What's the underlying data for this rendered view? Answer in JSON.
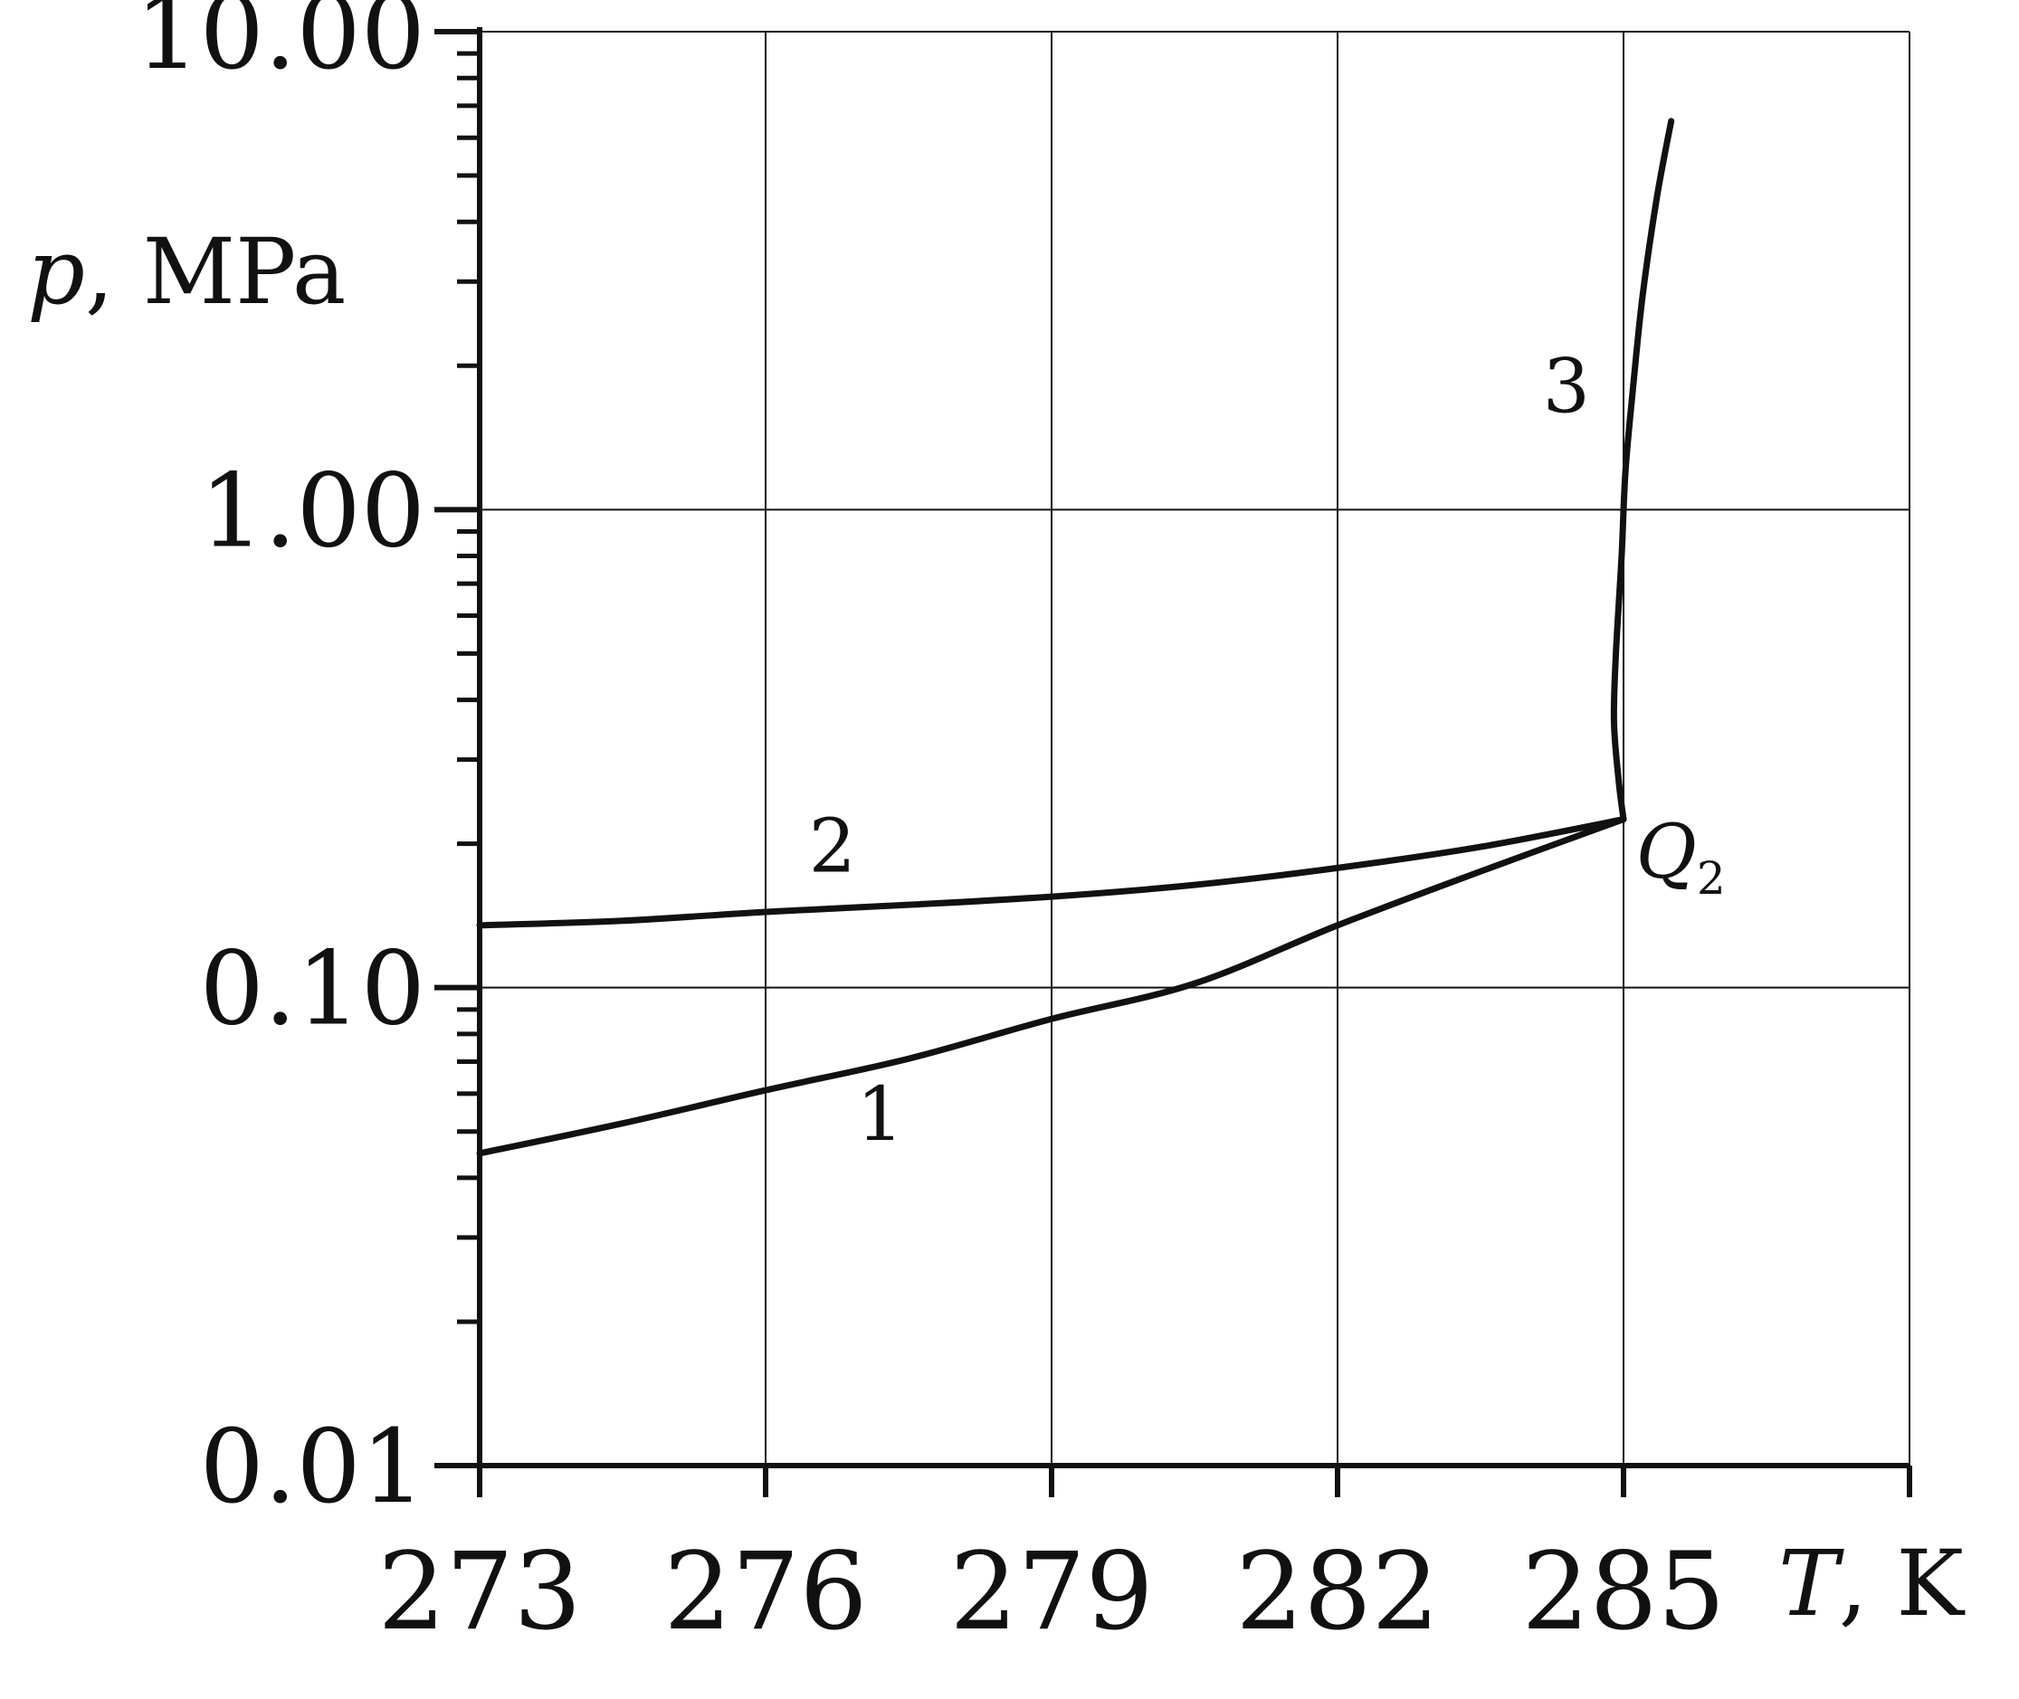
{
  "chart_data": {
    "type": "line",
    "title": "",
    "xlabel": "T, K",
    "ylabel": "p, MPa",
    "x_axis": {
      "min": 273,
      "max": 288,
      "ticks": [
        273,
        276,
        279,
        282,
        285
      ],
      "tick_labels": [
        "273",
        "276",
        "279",
        "282",
        "285"
      ]
    },
    "y_axis": {
      "scale": "log",
      "min": 0.01,
      "max": 10,
      "ticks": [
        0.01,
        0.1,
        1,
        10
      ],
      "tick_labels": [
        "0.01",
        "0.10",
        "1.00",
        "10.00"
      ]
    },
    "grid": true,
    "legend": "none",
    "series": [
      {
        "name": "1",
        "points": [
          [
            273,
            0.045
          ],
          [
            274.5,
            0.052
          ],
          [
            276,
            0.061
          ],
          [
            277.5,
            0.071
          ],
          [
            279,
            0.086
          ],
          [
            280.5,
            0.102
          ],
          [
            282,
            0.135
          ],
          [
            283.5,
            0.175
          ],
          [
            285,
            0.225
          ]
        ]
      },
      {
        "name": "2",
        "points": [
          [
            273,
            0.135
          ],
          [
            274.5,
            0.138
          ],
          [
            276,
            0.144
          ],
          [
            277.5,
            0.149
          ],
          [
            279,
            0.155
          ],
          [
            280.5,
            0.164
          ],
          [
            282,
            0.178
          ],
          [
            283.5,
            0.197
          ],
          [
            285,
            0.225
          ]
        ]
      },
      {
        "name": "3",
        "points": [
          [
            285,
            0.225
          ],
          [
            284.95,
            0.27
          ],
          [
            284.9,
            0.36
          ],
          [
            284.92,
            0.5
          ],
          [
            284.98,
            0.8
          ],
          [
            285.02,
            1.2
          ],
          [
            285.1,
            1.8
          ],
          [
            285.2,
            2.8
          ],
          [
            285.35,
            4.5
          ],
          [
            285.5,
            6.5
          ]
        ]
      }
    ],
    "annotations": [
      {
        "text": "1",
        "x": 277.2,
        "y": 0.048
      },
      {
        "text": "2",
        "x": 276.7,
        "y": 0.175
      },
      {
        "text": "3",
        "x": 284.4,
        "y": 1.6
      },
      {
        "text": "Q",
        "subscript": "2",
        "x": 285.6,
        "y": 0.17
      }
    ]
  }
}
